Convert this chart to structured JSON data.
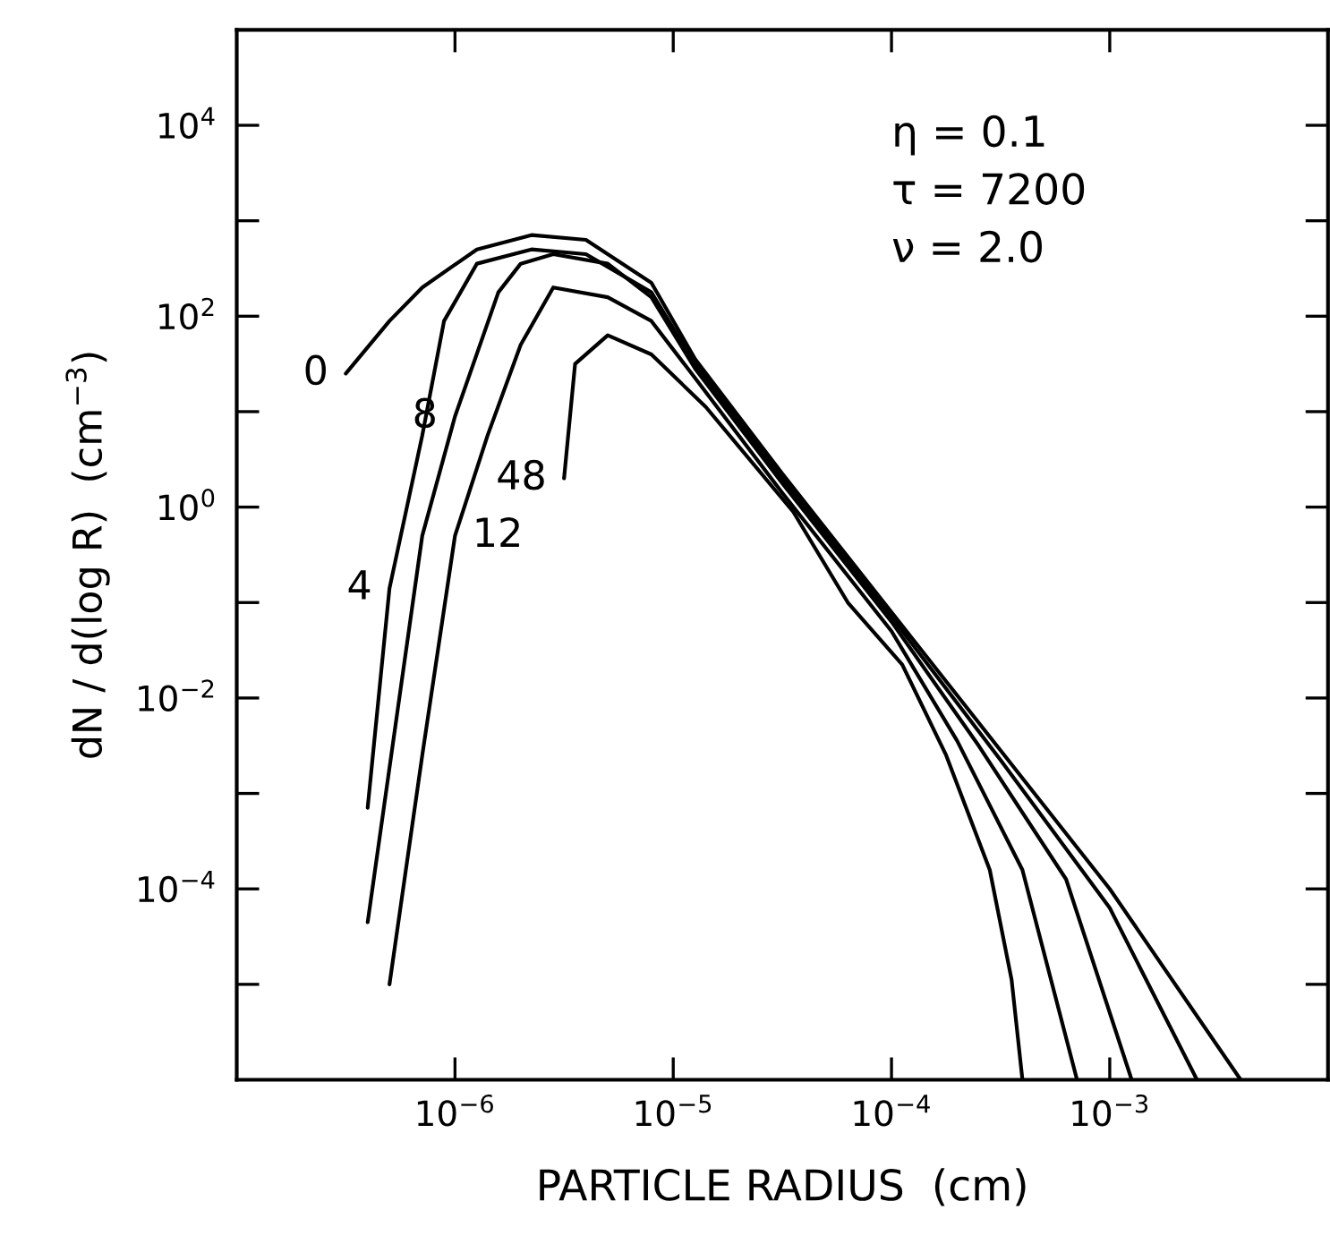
{
  "chart_data": {
    "type": "line",
    "xlabel": "PARTICLE RADIUS  (cm)",
    "ylabel": "dN / d(log R)  (cm$^{−3}$)",
    "log": "xy",
    "grid": false,
    "legend": false,
    "marker": "none",
    "line_style": "solid",
    "xlim": [
      1e-07,
      0.01
    ],
    "ylim": [
      1e-06,
      100000.0
    ],
    "xticks": [
      {
        "value": 1e-06,
        "label": "10$^{−6}$"
      },
      {
        "value": 1e-05,
        "label": "10$^{−5}$"
      },
      {
        "value": 0.0001,
        "label": "10$^{−4}$"
      },
      {
        "value": 0.001,
        "label": "10$^{−3}$"
      }
    ],
    "yticks": [
      {
        "value": 1e-05,
        "label": null
      },
      {
        "value": 0.0001,
        "label": "10$^{−4}$"
      },
      {
        "value": 0.001,
        "label": null
      },
      {
        "value": 0.01,
        "label": "10$^{−2}$"
      },
      {
        "value": 0.1,
        "label": null
      },
      {
        "value": 1,
        "label": "10$^{0}$"
      },
      {
        "value": 10,
        "label": null
      },
      {
        "value": 100,
        "label": "10$^{2}$"
      },
      {
        "value": 1000,
        "label": null
      },
      {
        "value": 10000,
        "label": "10$^{4}$"
      }
    ],
    "series": [
      {
        "color": "#000000",
        "x": [
          3.16e-07,
          5.01e-07,
          7.08e-07,
          1.26e-06,
          2.24e-06,
          3.98e-06,
          7.94e-06,
          1.26e-05,
          3.16e-05,
          0.0001,
          0.000316,
          0.001,
          0.00398
        ],
        "values": [
          25.1,
          89.1,
          200,
          501,
          708,
          631,
          224,
          35.5,
          2.24,
          0.0794,
          0.00282,
          0.0001,
          1e-06
        ]
      },
      {
        "color": "#000000",
        "x": [
          3.98e-07,
          5.01e-07,
          7.08e-07,
          8.91e-07,
          1.26e-06,
          2.24e-06,
          3.98e-06,
          7.94e-06,
          1.26e-05,
          3.16e-05,
          0.0001,
          0.000316,
          0.001,
          0.00251
        ],
        "values": [
          0.000708,
          0.141,
          5.62,
          89.1,
          355,
          501,
          447,
          178,
          31.6,
          2.0,
          0.0708,
          0.00224,
          6.31e-05,
          1e-06
        ]
      },
      {
        "color": "#000000",
        "x": [
          3.98e-07,
          7.08e-07,
          1e-06,
          1.58e-06,
          2e-06,
          2.82e-06,
          5.01e-06,
          7.94e-06,
          1.26e-05,
          3.16e-05,
          0.0001,
          0.000251,
          0.000631,
          0.00126
        ],
        "values": [
          4.47e-05,
          0.501,
          8.91,
          178,
          355,
          447,
          355,
          158,
          28.2,
          1.78,
          0.0631,
          0.00316,
          0.000126,
          1e-06
        ]
      },
      {
        "color": "#000000",
        "x": [
          5.01e-07,
          7.08e-07,
          1e-06,
          1.41e-06,
          2e-06,
          2.82e-06,
          5.01e-06,
          7.94e-06,
          1.26e-05,
          3.16e-05,
          0.0001,
          0.0002,
          0.000398,
          0.000708
        ],
        "values": [
          1e-05,
          0.00251,
          0.501,
          5.62,
          50.1,
          200,
          158,
          89.1,
          22.4,
          1.41,
          0.0501,
          0.00355,
          0.000158,
          1e-06
        ]
      },
      {
        "color": "#000000",
        "x": [
          3.16e-06,
          3.55e-06,
          5.01e-06,
          7.94e-06,
          1.41e-05,
          3.55e-05,
          6.31e-05,
          0.000112,
          0.000178,
          0.000282,
          0.000355,
          0.000398
        ],
        "values": [
          2.0,
          31.6,
          63.1,
          39.8,
          11.2,
          0.891,
          0.1,
          0.0224,
          0.00251,
          0.000158,
          1.12e-05,
          1e-06
        ]
      }
    ],
    "annotations": [
      "η = 0.1",
      "τ = 7200",
      "ν = 2.0",
      {
        "text": "0",
        "x": 3.16e-07,
        "y": 25.1
      },
      {
        "text": "8",
        "x": 1e-06,
        "y": 8.91
      },
      {
        "text": "48",
        "x": 3.16e-06,
        "y": 2.0
      },
      {
        "text": "12",
        "x": 1e-06,
        "y": 0.501
      },
      {
        "text": "4",
        "x": 5.01e-07,
        "y": 0.141
      }
    ]
  }
}
